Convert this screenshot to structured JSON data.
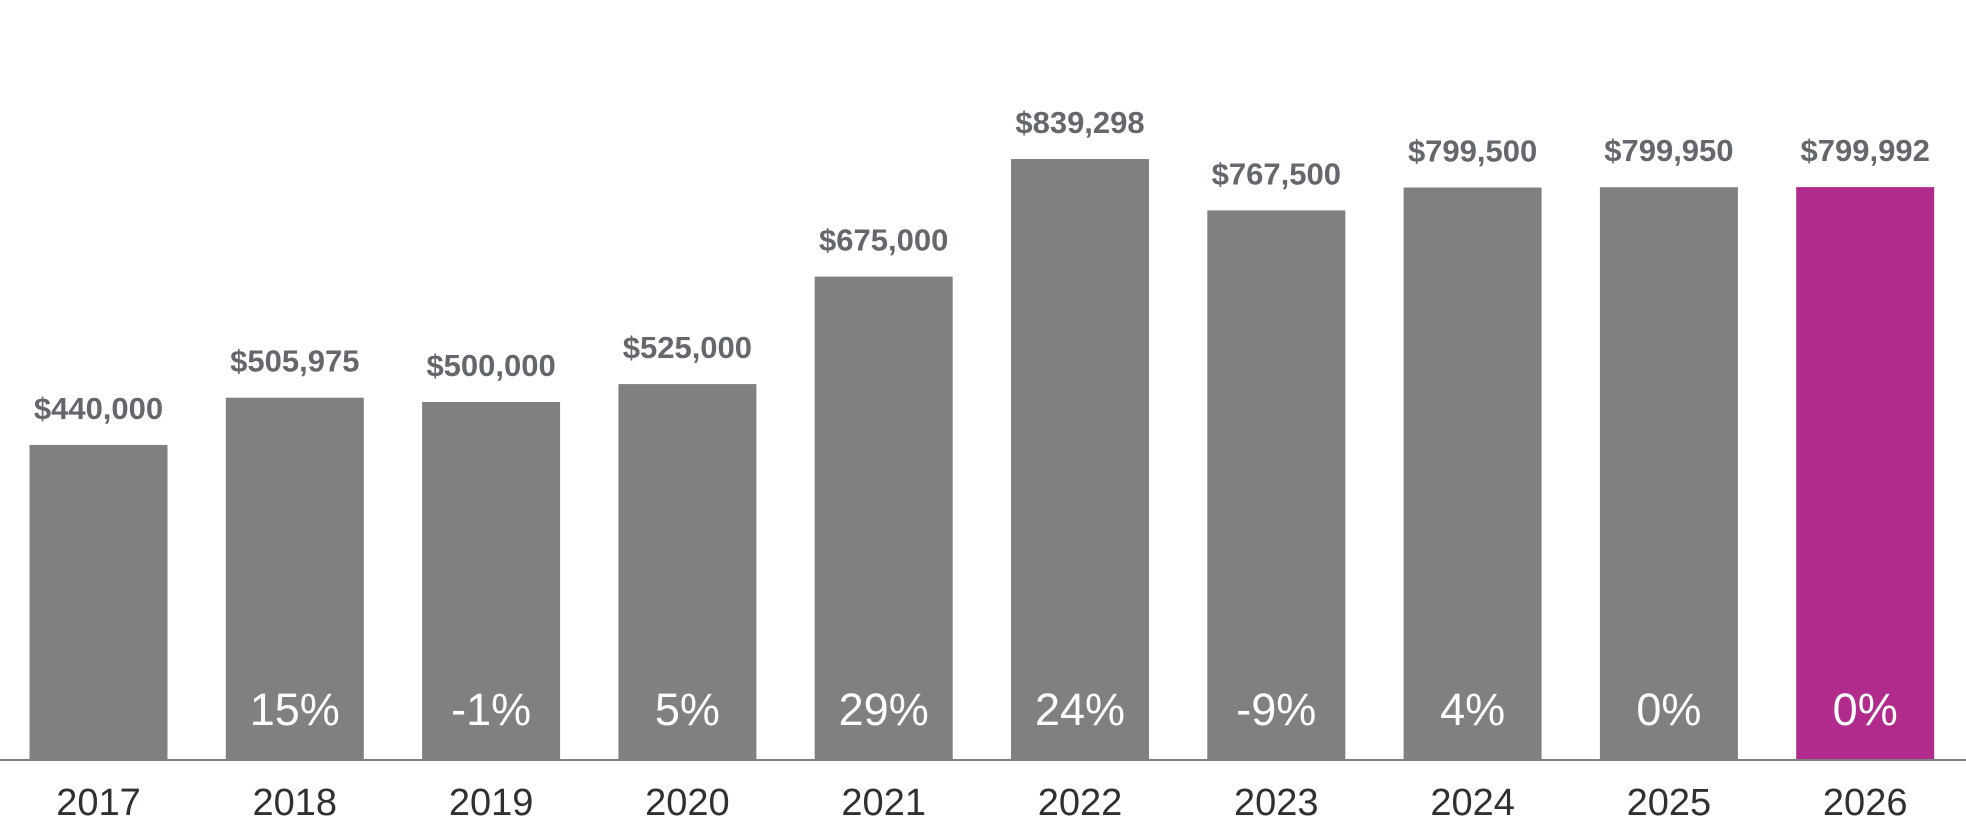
{
  "chart_data": {
    "type": "bar",
    "title": "",
    "xlabel": "",
    "ylabel": "",
    "categories": [
      "2017",
      "2018",
      "2019",
      "2020",
      "2021",
      "2022",
      "2023",
      "2024",
      "2025",
      "2026"
    ],
    "values": [
      440000,
      505975,
      500000,
      525000,
      675000,
      839298,
      767500,
      799500,
      799950,
      799992
    ],
    "value_labels": [
      "$440,000",
      "$505,975",
      "$500,000",
      "$525,000",
      "$675,000",
      "$839,298",
      "$767,500",
      "$799,500",
      "$799,950",
      "$799,992"
    ],
    "change_labels": [
      "",
      "15%",
      "-1%",
      "5%",
      "29%",
      "24%",
      "-9%",
      "4%",
      "0%",
      "0%"
    ],
    "ylim": [
      0,
      839298
    ],
    "grid": false,
    "legend": "none",
    "colors": {
      "bar": "#808080",
      "highlight": "#b12b8c",
      "highlight_category": "2026",
      "value_text": "#64676c",
      "axis": "#808080"
    }
  }
}
